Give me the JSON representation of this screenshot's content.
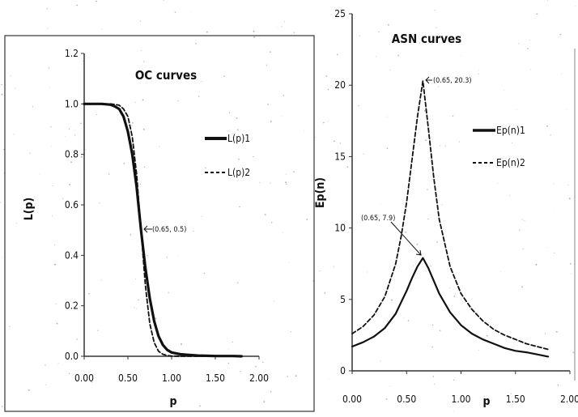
{
  "chart_data": [
    {
      "type": "line",
      "title": "OC curves",
      "xlabel": "p",
      "ylabel": "L(p)",
      "xlim": [
        0,
        2.0
      ],
      "ylim": [
        0,
        1.2
      ],
      "x_ticks": [
        "0.00",
        "0.50",
        "1.00",
        "1.50",
        "2.00"
      ],
      "y_ticks": [
        "0.0",
        "0.2",
        "0.4",
        "0.6",
        "0.8",
        "1.0",
        "1.2"
      ],
      "x": [
        0.0,
        0.1,
        0.2,
        0.3,
        0.35,
        0.4,
        0.45,
        0.5,
        0.55,
        0.6,
        0.65,
        0.7,
        0.75,
        0.8,
        0.85,
        0.9,
        0.95,
        1.0,
        1.1,
        1.2,
        1.3,
        1.4,
        1.5,
        1.6,
        1.7,
        1.8
      ],
      "series": [
        {
          "name": "L(p)1",
          "style": "solid",
          "values": [
            1.0,
            1.0,
            1.0,
            0.997,
            0.99,
            0.98,
            0.95,
            0.89,
            0.8,
            0.67,
            0.5,
            0.35,
            0.23,
            0.14,
            0.08,
            0.045,
            0.025,
            0.015,
            0.008,
            0.005,
            0.003,
            0.002,
            0.001,
            0.001,
            0.001,
            0.0
          ]
        },
        {
          "name": "L(p)2",
          "style": "dashed",
          "values": [
            1.0,
            1.0,
            1.0,
            1.0,
            0.998,
            0.995,
            0.98,
            0.95,
            0.87,
            0.72,
            0.5,
            0.28,
            0.13,
            0.055,
            0.02,
            0.008,
            0.003,
            0.001,
            0.0,
            0.0,
            0.0,
            0.0,
            0.0,
            0.0,
            0.0,
            0.0
          ]
        }
      ],
      "annotations": [
        {
          "text": "(0.65, 0.5)",
          "x": 0.65,
          "y": 0.5
        }
      ],
      "legend": "right"
    },
    {
      "type": "line",
      "title": "ASN curves",
      "xlabel": "p",
      "ylabel": "Ep(n)",
      "xlim": [
        0,
        2.0
      ],
      "ylim": [
        0,
        25
      ],
      "x_ticks": [
        "0.00",
        "0.50",
        "1.00",
        "1.50",
        "2.00"
      ],
      "y_ticks": [
        "0",
        "5",
        "10",
        "15",
        "20",
        "25"
      ],
      "x": [
        0.0,
        0.1,
        0.2,
        0.3,
        0.4,
        0.45,
        0.5,
        0.55,
        0.6,
        0.65,
        0.7,
        0.75,
        0.8,
        0.9,
        1.0,
        1.1,
        1.2,
        1.3,
        1.4,
        1.5,
        1.6,
        1.7,
        1.8
      ],
      "series": [
        {
          "name": "Ep(n)1",
          "style": "solid",
          "values": [
            1.7,
            2.0,
            2.4,
            3.0,
            4.0,
            4.8,
            5.6,
            6.5,
            7.3,
            7.9,
            7.2,
            6.3,
            5.4,
            4.1,
            3.2,
            2.6,
            2.2,
            1.9,
            1.6,
            1.4,
            1.3,
            1.15,
            1.0
          ]
        },
        {
          "name": "Ep(n)2",
          "style": "dashed",
          "values": [
            2.6,
            3.1,
            3.9,
            5.2,
            7.5,
            9.4,
            11.8,
            14.8,
            17.8,
            20.3,
            17.0,
            13.5,
            10.6,
            7.3,
            5.4,
            4.3,
            3.5,
            2.9,
            2.5,
            2.2,
            1.9,
            1.7,
            1.5
          ]
        }
      ],
      "annotations": [
        {
          "text": "(0.65, 20.3)",
          "x": 0.65,
          "y": 20.3
        },
        {
          "text": "(0.65, 7.9)",
          "x": 0.65,
          "y": 7.9
        }
      ],
      "legend": "right"
    }
  ]
}
